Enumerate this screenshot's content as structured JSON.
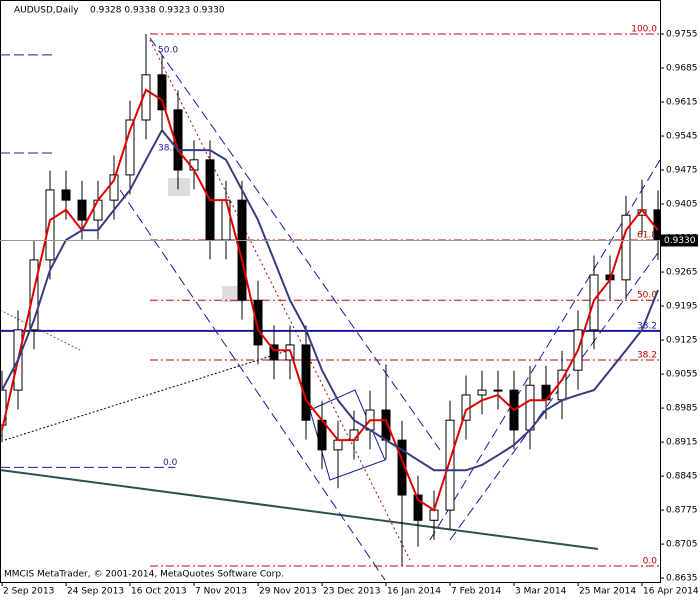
{
  "chart_data": {
    "type": "candlestick",
    "title": "AUDUSD,Daily",
    "quote": "0.9328 0.9338 0.9323 0.9330",
    "footer": "MMCIS MetaTrader, © 2001-2014, MetaQuotes Software Corp.",
    "categories": [
      "2 Sep 2013",
      null,
      null,
      null,
      "24 Sep 2013",
      null,
      null,
      null,
      "16 Oct 2013",
      null,
      null,
      null,
      "7 Nov 2013",
      null,
      null,
      null,
      "29 Nov 2013",
      null,
      null,
      null,
      "23 Dec 2013",
      null,
      null,
      null,
      "16 Jan 2014",
      null,
      null,
      null,
      "7 Feb 2014",
      null,
      null,
      null,
      "3 Mar 2014",
      null,
      null,
      null,
      "25 Mar 2014",
      null,
      null,
      null,
      "16 Apr 2014",
      null
    ],
    "open": [
      0.895,
      0.9022,
      0.9146,
      0.929,
      0.9434,
      0.9413,
      0.9372,
      0.9413,
      0.9465,
      0.9578,
      0.9671,
      0.9599,
      0.9475,
      0.9496,
      0.9331,
      0.9413,
      0.9207,
      0.9115,
      0.9084,
      0.9115,
      0.896,
      0.8899,
      0.8919,
      0.894,
      0.8981,
      0.8919,
      0.8806,
      0.8754,
      0.8775,
      0.896,
      0.9012,
      0.9022,
      0.9022,
      0.894,
      0.9032,
      0.9002,
      0.9063,
      0.9146,
      0.9259,
      0.9249,
      0.9382,
      0.9393
    ],
    "high": [
      0.9062,
      0.9186,
      0.933,
      0.9474,
      0.9474,
      0.9453,
      0.9453,
      0.9505,
      0.9618,
      0.9755,
      0.9711,
      0.9639,
      0.9536,
      0.9536,
      0.9453,
      0.9453,
      0.9247,
      0.9155,
      0.9155,
      0.9155,
      0.9,
      0.8959,
      0.898,
      0.9021,
      0.9075,
      0.8959,
      0.8846,
      0.8815,
      0.9,
      0.9052,
      0.9062,
      0.9062,
      0.9062,
      0.9072,
      0.9072,
      0.9103,
      0.9186,
      0.9299,
      0.9299,
      0.9422,
      0.9455,
      0.9433
    ],
    "low": [
      0.8915,
      0.8982,
      0.9106,
      0.925,
      0.9373,
      0.9332,
      0.9332,
      0.9373,
      0.9425,
      0.9538,
      0.9559,
      0.9435,
      0.9435,
      0.9291,
      0.9291,
      0.9167,
      0.9075,
      0.9044,
      0.9044,
      0.892,
      0.8859,
      0.882,
      0.8879,
      0.89,
      0.8879,
      0.866,
      0.87,
      0.8714,
      0.8735,
      0.892,
      0.8972,
      0.8982,
      0.89,
      0.89,
      0.8962,
      0.8962,
      0.9023,
      0.9106,
      0.9209,
      0.9209,
      0.9342,
      0.929
    ],
    "close": [
      0.9022,
      0.9146,
      0.929,
      0.9434,
      0.9413,
      0.9372,
      0.9413,
      0.9465,
      0.9578,
      0.9671,
      0.9599,
      0.9475,
      0.9496,
      0.9331,
      0.9413,
      0.9207,
      0.9115,
      0.9084,
      0.9115,
      0.896,
      0.8899,
      0.8919,
      0.894,
      0.8981,
      0.8919,
      0.8806,
      0.8754,
      0.8775,
      0.896,
      0.9012,
      0.9022,
      0.9022,
      0.894,
      0.9032,
      0.9002,
      0.9063,
      0.9146,
      0.9259,
      0.9249,
      0.9382,
      0.9393,
      0.933
    ],
    "series": [
      {
        "color": "#e00000",
        "values": [
          0.894,
          0.9084,
          0.9228,
          0.9372,
          0.9393,
          0.9351,
          0.9413,
          0.9454,
          0.9557,
          0.964,
          0.9619,
          0.9516,
          0.9475,
          0.9413,
          0.9413,
          0.929,
          0.9146,
          0.9104,
          0.9104,
          0.9001,
          0.896,
          0.8919,
          0.8919,
          0.896,
          0.896,
          0.8878,
          0.8796,
          0.8775,
          0.8878,
          0.8981,
          0.9001,
          0.9012,
          0.8981,
          0.9001,
          0.9001,
          0.9043,
          0.9104,
          0.9207,
          0.9249,
          0.9351,
          0.9393,
          0.9351
        ]
      },
      {
        "color": "#3a3a80",
        "values": [
          0.9022,
          0.9084,
          0.9166,
          0.9269,
          0.9331,
          0.9351,
          0.9351,
          0.9393,
          0.9434,
          0.9496,
          0.9557,
          0.9516,
          0.9516,
          0.9516,
          0.9496,
          0.9434,
          0.9372,
          0.929,
          0.9207,
          0.9146,
          0.9063,
          0.9001,
          0.896,
          0.894,
          0.8919,
          0.8899,
          0.8878,
          0.8857,
          0.8857,
          0.8857,
          0.8868,
          0.8888,
          0.8909,
          0.894,
          0.8981,
          0.9001,
          0.9012,
          0.9022,
          0.9063,
          0.9104,
          0.9146,
          0.9228
        ]
      }
    ],
    "ylim": [
      0.8627,
      0.9825
    ],
    "yticks": [
      0.8635,
      0.8705,
      0.8775,
      0.8845,
      0.8915,
      0.8985,
      0.9055,
      0.9125,
      0.9195,
      0.9265,
      0.9335,
      0.9405,
      0.9475,
      0.9545,
      0.9615,
      0.9685,
      0.9755
    ],
    "grid": false,
    "fib_levels": [
      {
        "value": 0.9755,
        "label": "100.0"
      },
      {
        "value": 0.9331,
        "label": "61.8"
      },
      {
        "value": 0.9207,
        "label": "50.0"
      },
      {
        "value": 0.9084,
        "label": "38.2"
      },
      {
        "value": 0.866,
        "label": "0.0"
      }
    ],
    "left_fib_levels": [
      {
        "value": 0.9712,
        "label": "50.0"
      },
      {
        "value": 0.951,
        "label": "38.2"
      },
      {
        "value": 0.8863,
        "label": "0.0"
      }
    ],
    "level_line": {
      "value": 0.9144,
      "label": "38.2"
    },
    "last_price": {
      "value": 0.933,
      "label": "0.9330"
    }
  }
}
